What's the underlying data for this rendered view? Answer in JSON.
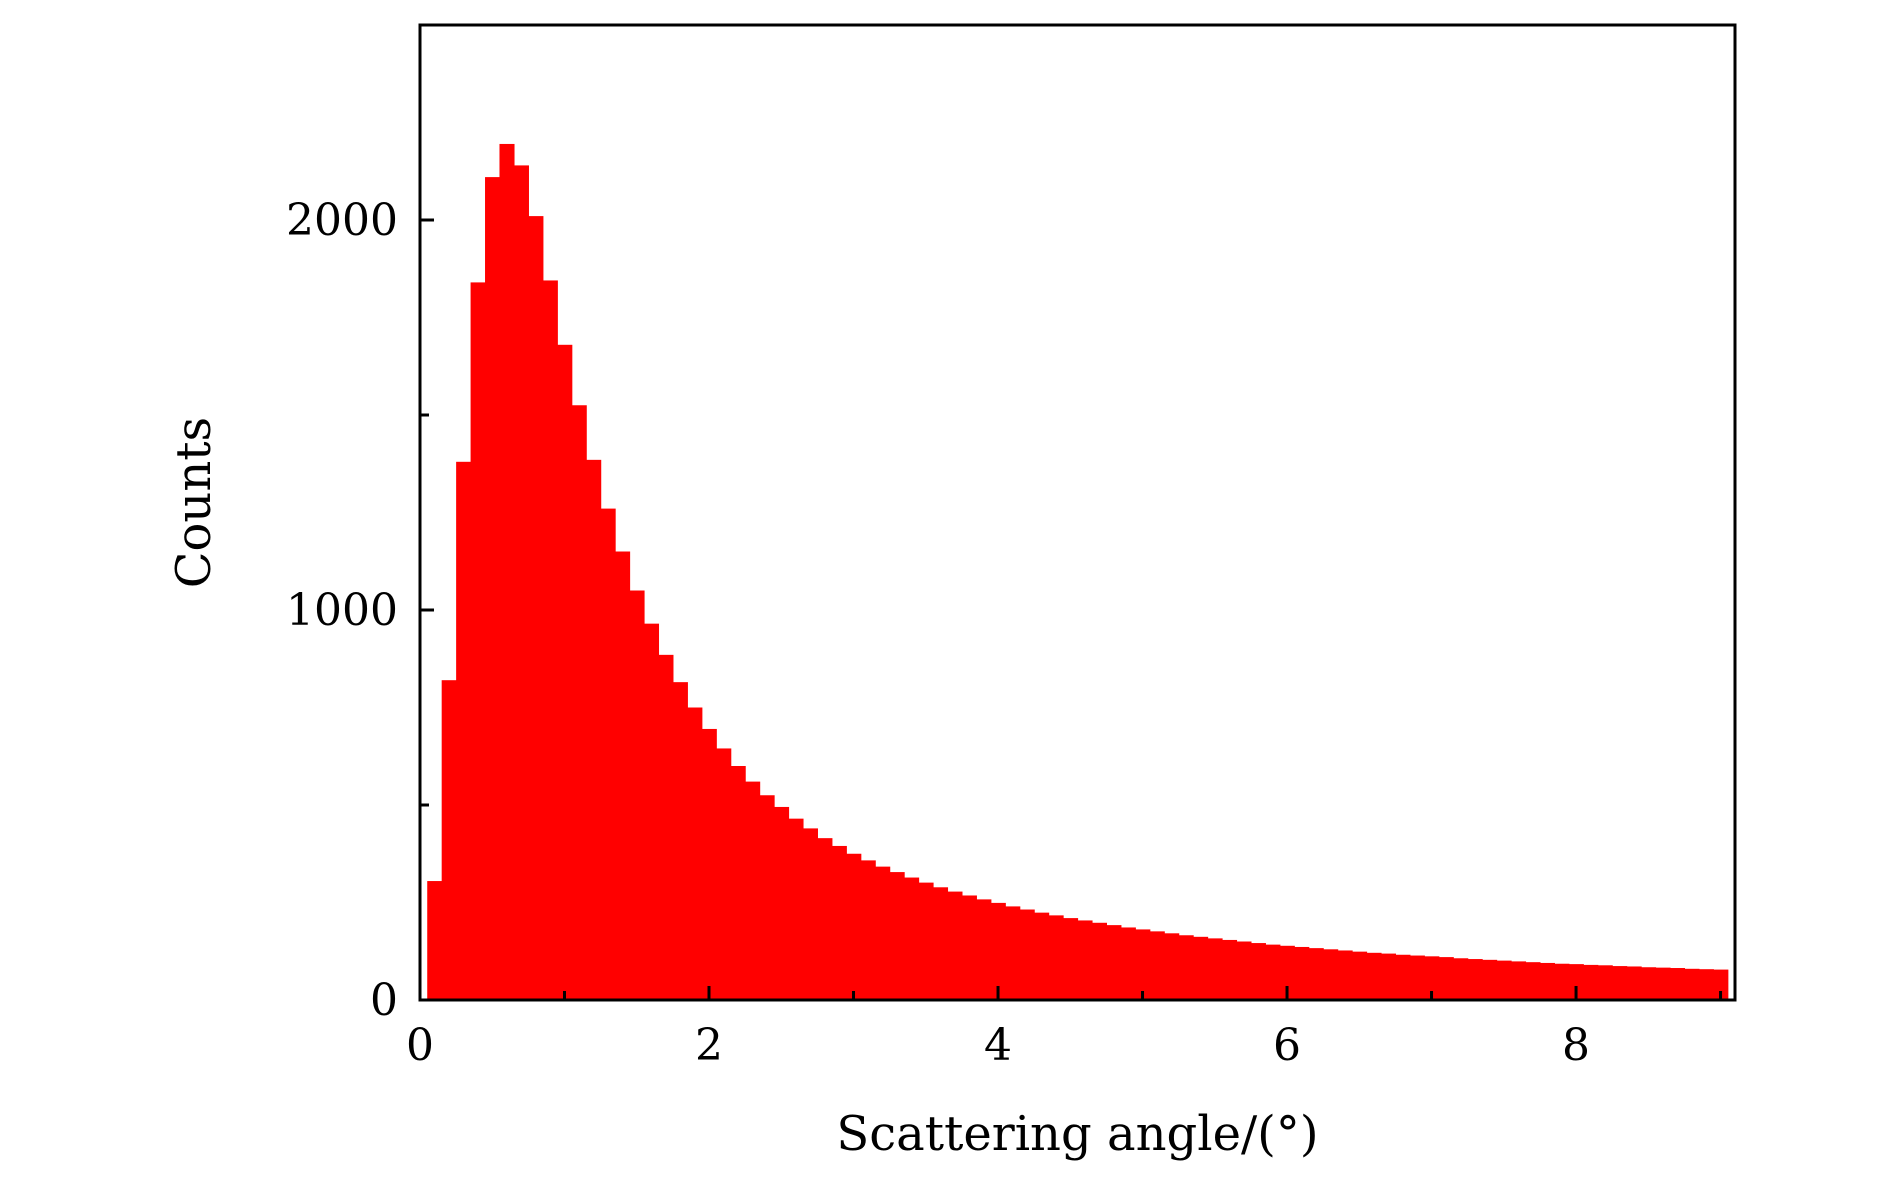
{
  "chart_data": {
    "type": "bar",
    "title": "",
    "xlabel": "Scattering angle/(°)",
    "ylabel": "Counts",
    "xlim": [
      0,
      9.1
    ],
    "ylim": [
      0,
      2500
    ],
    "x_ticks": [
      0,
      2,
      4,
      6,
      8
    ],
    "x_tick_labels": [
      "0",
      "2",
      "4",
      "6",
      "8"
    ],
    "x_minor_ticks": [
      1,
      3,
      5,
      7,
      9
    ],
    "y_ticks": [
      0,
      1000,
      2000
    ],
    "y_tick_labels": [
      "0",
      "1000",
      "2000"
    ],
    "y_minor_ticks": [
      500,
      1500
    ],
    "grid": false,
    "legend": "none",
    "bar_color": "#ff0000",
    "bin_width": 0.1,
    "bin_start": [
      0.05,
      0.15,
      0.25,
      0.35,
      0.45,
      0.55,
      0.65,
      0.75,
      0.85,
      0.95,
      1.05,
      1.15,
      1.25,
      1.35,
      1.45,
      1.55,
      1.65,
      1.75,
      1.85,
      1.95,
      2.05,
      2.15,
      2.25,
      2.35,
      2.45,
      2.55,
      2.65,
      2.75,
      2.85,
      2.95,
      3.05,
      3.15,
      3.25,
      3.35,
      3.45,
      3.55,
      3.65,
      3.75,
      3.85,
      3.95,
      4.05,
      4.15,
      4.25,
      4.35,
      4.45,
      4.55,
      4.65,
      4.75,
      4.85,
      4.95,
      5.05,
      5.15,
      5.25,
      5.35,
      5.45,
      5.55,
      5.65,
      5.75,
      5.85,
      5.95,
      6.05,
      6.15,
      6.25,
      6.35,
      6.45,
      6.55,
      6.65,
      6.75,
      6.85,
      6.95,
      7.05,
      7.15,
      7.25,
      7.35,
      7.45,
      7.55,
      7.65,
      7.75,
      7.85,
      7.95,
      8.05,
      8.15,
      8.25,
      8.35,
      8.45,
      8.55,
      8.65,
      8.75,
      8.85,
      8.95
    ],
    "counts": [
      305,
      820,
      1380,
      1840,
      2110,
      2195,
      2140,
      2010,
      1845,
      1680,
      1525,
      1385,
      1260,
      1150,
      1050,
      965,
      885,
      815,
      750,
      695,
      645,
      600,
      560,
      525,
      495,
      465,
      440,
      415,
      395,
      375,
      358,
      342,
      328,
      314,
      301,
      289,
      278,
      268,
      258,
      249,
      240,
      232,
      224,
      217,
      210,
      204,
      198,
      192,
      186,
      181,
      176,
      171,
      166,
      162,
      158,
      154,
      150,
      146,
      142,
      139,
      136,
      133,
      130,
      127,
      124,
      121,
      119,
      116,
      114,
      112,
      110,
      107,
      105,
      103,
      101,
      99,
      97,
      95,
      93,
      92,
      90,
      89,
      87,
      86,
      84,
      83,
      82,
      80,
      79,
      78
    ]
  }
}
